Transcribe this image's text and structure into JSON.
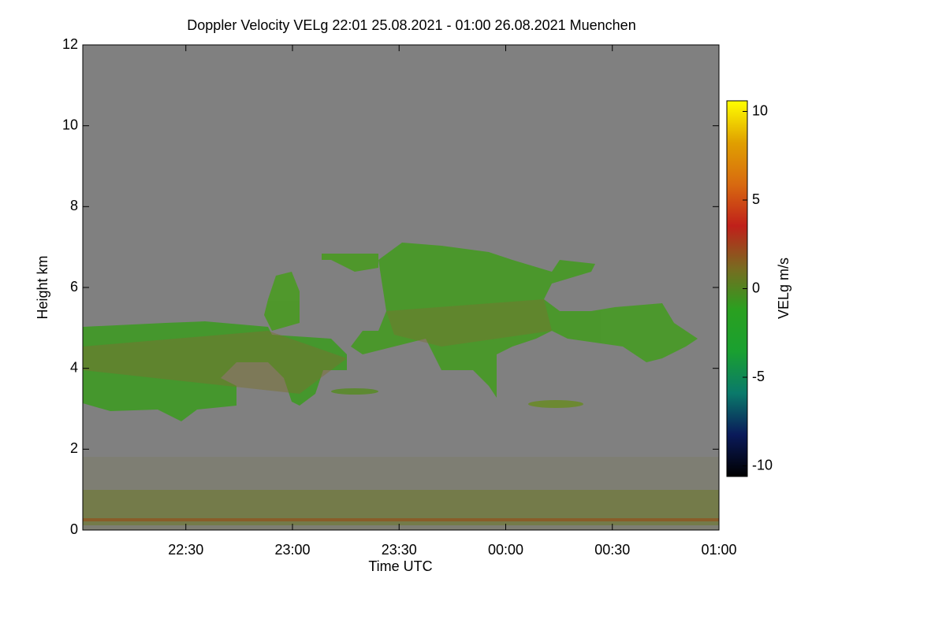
{
  "chart_data": {
    "type": "heatmap",
    "title": "Doppler Velocity VELg   22:01 25.08.2021 - 01:00 26.08.2021 Muenchen",
    "x_label": "Time UTC",
    "y_label": "Height km",
    "xlim": [
      1,
      180
    ],
    "xticks": [
      {
        "value": 30,
        "label": "22:30"
      },
      {
        "value": 60,
        "label": "23:00"
      },
      {
        "value": 90,
        "label": "23:30"
      },
      {
        "value": 120,
        "label": "00:00"
      },
      {
        "value": 150,
        "label": "00:30"
      },
      {
        "value": 180,
        "label": "01:00"
      }
    ],
    "ylim": [
      0,
      12
    ],
    "yticks": [
      0,
      2,
      4,
      6,
      8,
      10,
      12
    ],
    "colorbar_label": "VELg m/s",
    "clim": [
      -10.6,
      10.6
    ],
    "cticks": [
      -10,
      -5,
      0,
      5,
      10
    ],
    "colormap": [
      "#000000",
      "#0a1a5a",
      "#0a7a6a",
      "#1aa030",
      "#2aa020",
      "#7a6a20",
      "#c0201a",
      "#d86a10",
      "#e0a000",
      "#ffff00"
    ],
    "background": "#808080"
  }
}
